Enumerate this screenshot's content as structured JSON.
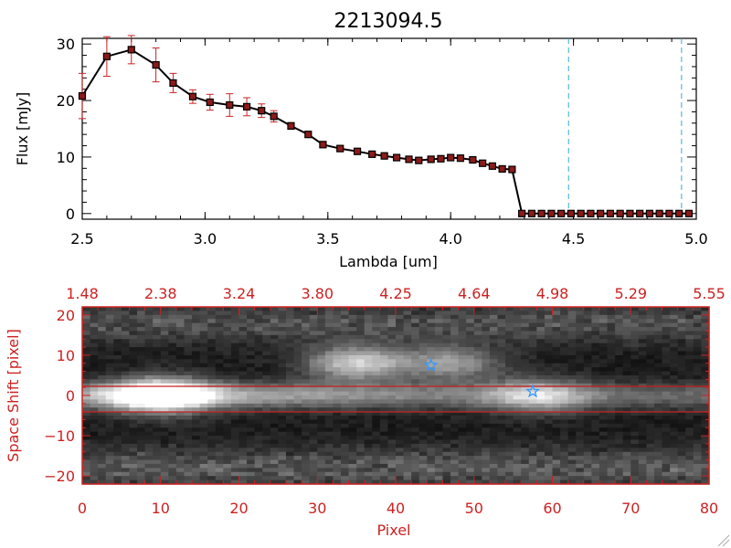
{
  "colors": {
    "accent_red": "#cc2222",
    "line": "#000000",
    "errorbar": "#cc2222",
    "dashed": "#33aacc",
    "star": "#3399ff"
  },
  "chart_data": [
    {
      "type": "line",
      "title": "2213094.5",
      "xlabel": "Lambda [um]",
      "ylabel": "Flux [mJy]",
      "xlim": [
        2.5,
        5.0
      ],
      "ylim": [
        -1,
        31
      ],
      "xticks": [
        2.5,
        3.0,
        3.5,
        4.0,
        4.5,
        5.0
      ],
      "xtick_labels": [
        "2.5",
        "3.0",
        "3.5",
        "4.0",
        "4.5",
        "5.0"
      ],
      "yticks": [
        0,
        10,
        20,
        30
      ],
      "ytick_labels": [
        "0",
        "10",
        "20",
        "30"
      ],
      "vlines": [
        4.48,
        4.94
      ],
      "series": [
        {
          "name": "flux",
          "x": [
            2.5,
            2.6,
            2.7,
            2.8,
            2.87,
            2.95,
            3.02,
            3.1,
            3.17,
            3.23,
            3.28,
            3.35,
            3.42,
            3.48,
            3.55,
            3.62,
            3.68,
            3.73,
            3.78,
            3.83,
            3.87,
            3.92,
            3.96,
            4.0,
            4.04,
            4.09,
            4.13,
            4.17,
            4.21,
            4.25,
            4.29,
            4.33,
            4.37,
            4.41,
            4.45,
            4.49,
            4.53,
            4.57,
            4.61,
            4.65,
            4.69,
            4.73,
            4.77,
            4.81,
            4.85,
            4.89,
            4.93,
            4.97
          ],
          "y": [
            20.8,
            27.8,
            29.0,
            26.3,
            23.1,
            20.7,
            19.7,
            19.2,
            18.9,
            18.2,
            17.2,
            15.5,
            14.0,
            12.2,
            11.5,
            11.0,
            10.5,
            10.2,
            9.9,
            9.6,
            9.4,
            9.6,
            9.7,
            9.9,
            9.8,
            9.5,
            8.9,
            8.4,
            7.9,
            7.8,
            0.0,
            0.0,
            0.0,
            0.0,
            0.0,
            0.0,
            0.0,
            0.0,
            0.0,
            0.0,
            0.0,
            0.0,
            0.0,
            0.0,
            0.0,
            0.0,
            0.0,
            0.0
          ],
          "err": [
            4.0,
            3.5,
            2.5,
            3.0,
            1.7,
            1.2,
            1.4,
            2.0,
            1.6,
            1.2,
            1.0,
            0.6,
            0.5,
            0.4,
            0.4,
            0.4,
            0.3,
            0.3,
            0.3,
            0.3,
            0.3,
            0.3,
            0.3,
            0.3,
            0.3,
            0.3,
            0.3,
            0.3,
            0.3,
            0.3,
            0.3,
            0.3,
            0.3,
            0.3,
            0.3,
            0.3,
            0.3,
            0.3,
            0.3,
            0.3,
            0.3,
            0.3,
            0.3,
            0.3,
            0.3,
            0.3,
            0.3,
            0.3
          ]
        }
      ]
    },
    {
      "type": "heatmap",
      "title": "",
      "xlabel": "Pixel",
      "ylabel": "Space Shift [pixel]",
      "xlim": [
        0,
        80
      ],
      "ylim": [
        -22,
        22
      ],
      "xticks": [
        0,
        10,
        20,
        30,
        40,
        50,
        60,
        70,
        80
      ],
      "xtick_labels": [
        "0",
        "10",
        "20",
        "30",
        "40",
        "50",
        "60",
        "70",
        "80"
      ],
      "yticks": [
        -20,
        -10,
        0,
        10,
        20
      ],
      "ytick_labels": [
        "−20",
        "−10",
        "0",
        "10",
        "20"
      ],
      "top_axis": {
        "positions": [
          0,
          10,
          20,
          30,
          40,
          50,
          60,
          70,
          80
        ],
        "labels": [
          "1.48",
          "2.38",
          "3.24",
          "3.80",
          "4.25",
          "4.64",
          "4.98",
          "5.29",
          "5.55"
        ]
      },
      "hlines": [
        3,
        -3
      ],
      "stars": [
        {
          "x": 44.5,
          "y": 7.5
        },
        {
          "x": 57.5,
          "y": 1.0
        }
      ],
      "features": [
        {
          "kind": "trace",
          "y": 0,
          "intensity": 0.55
        },
        {
          "kind": "blob",
          "x": 10,
          "y": 0,
          "intensity": 1.0
        },
        {
          "kind": "blob",
          "x": 58,
          "y": 0,
          "intensity": 0.5
        },
        {
          "kind": "blob",
          "x": 35,
          "y": 8,
          "intensity": 0.7
        },
        {
          "kind": "blob",
          "x": 47,
          "y": 8,
          "intensity": 0.5
        },
        {
          "kind": "band",
          "y": -18,
          "intensity": 0.35
        },
        {
          "kind": "band",
          "y": 18,
          "intensity": 0.3
        }
      ]
    }
  ]
}
